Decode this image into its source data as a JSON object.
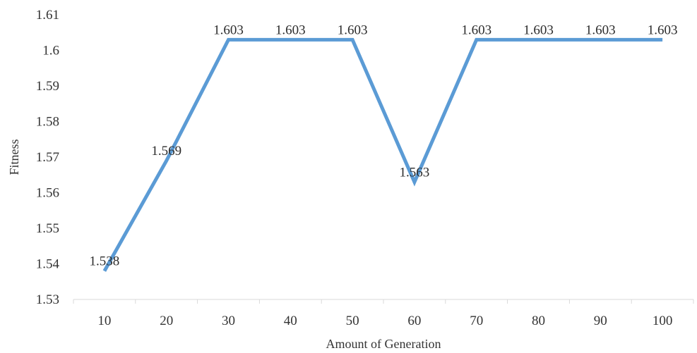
{
  "chart_data": {
    "type": "line",
    "title": "",
    "xlabel": "Amount of Generation",
    "ylabel": "Fitness",
    "categories": [
      "10",
      "20",
      "30",
      "40",
      "50",
      "60",
      "70",
      "80",
      "90",
      "100"
    ],
    "series": [
      {
        "values": [
          1.538,
          1.569,
          1.603,
          1.603,
          1.603,
          1.563,
          1.603,
          1.603,
          1.603,
          1.603
        ],
        "data_labels": [
          "1.538",
          "1.569",
          "1.603",
          "1.603",
          "1.603",
          "1.563",
          "1.603",
          "1.603",
          "1.603",
          "1.603"
        ],
        "color": "#5b9bd5"
      }
    ],
    "ylim": [
      1.53,
      1.61
    ],
    "yticks": [
      1.53,
      1.54,
      1.55,
      1.56,
      1.57,
      1.58,
      1.59,
      1.6,
      1.61
    ],
    "ytick_labels": [
      "1.53",
      "1.54",
      "1.55",
      "1.56",
      "1.57",
      "1.58",
      "1.59",
      "1.6",
      "1.61"
    ],
    "grid": false,
    "legend": "none"
  }
}
